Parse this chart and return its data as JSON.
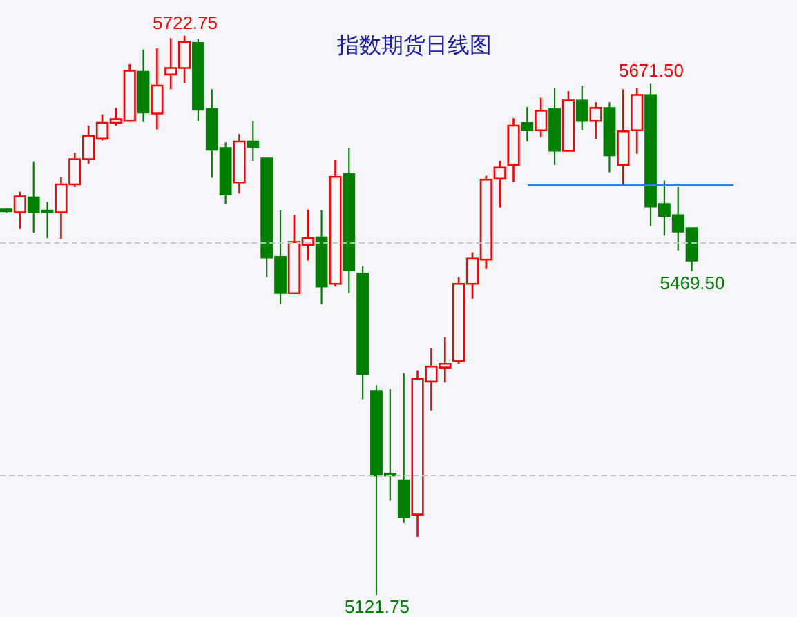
{
  "chart_data": {
    "type": "candlestick",
    "title": "指数期货日线图",
    "categories": [
      null,
      null,
      null,
      null,
      null,
      null,
      null,
      null,
      null,
      null,
      null,
      null,
      null,
      null,
      null,
      null,
      null,
      null,
      null,
      null,
      null,
      null,
      null,
      null,
      null,
      null,
      null,
      null,
      null,
      null,
      null,
      null,
      null,
      null,
      null,
      null,
      null,
      null,
      null,
      null,
      null,
      null,
      null,
      null,
      null,
      null,
      null,
      null,
      null,
      null,
      null,
      null,
      null,
      null
    ],
    "ohlc": [
      [
        5536,
        5537,
        5532,
        5534
      ],
      [
        5533,
        5555,
        5515,
        5550
      ],
      [
        5549,
        5587,
        5511,
        5533
      ],
      [
        5535,
        5544,
        5505,
        5533
      ],
      [
        5533,
        5571,
        5504,
        5563
      ],
      [
        5563,
        5597,
        5560,
        5590
      ],
      [
        5590,
        5626,
        5585,
        5615
      ],
      [
        5612,
        5638,
        5610,
        5629
      ],
      [
        5629,
        5645,
        5626,
        5633
      ],
      [
        5631,
        5692,
        5631,
        5685
      ],
      [
        5684,
        5708,
        5630,
        5640
      ],
      [
        5639,
        5709,
        5622,
        5669
      ],
      [
        5681,
        5720,
        5665,
        5688
      ],
      [
        5688,
        5722.75,
        5672,
        5716
      ],
      [
        5715,
        5719,
        5631,
        5643
      ],
      [
        5644,
        5665,
        5570,
        5600
      ],
      [
        5602,
        5608,
        5542,
        5552
      ],
      [
        5565,
        5617,
        5553,
        5609
      ],
      [
        5609,
        5631,
        5588,
        5603
      ],
      [
        5591,
        5591,
        5463,
        5484
      ],
      [
        5485,
        5535,
        5434,
        5446
      ],
      [
        5446,
        5530,
        5446,
        5501
      ],
      [
        5498,
        5536,
        5481,
        5505
      ],
      [
        5506,
        5535,
        5434,
        5453
      ],
      [
        5456,
        5589,
        5453,
        5571
      ],
      [
        5574,
        5602,
        5446,
        5471
      ],
      [
        5467,
        5475,
        5332,
        5359
      ],
      [
        5341,
        5347,
        5121.75,
        5250
      ],
      [
        5252,
        5343,
        5223,
        5250
      ],
      [
        5245,
        5360,
        5199,
        5205
      ],
      [
        5208,
        5363,
        5184,
        5354
      ],
      [
        5351,
        5387,
        5320,
        5367
      ],
      [
        5366,
        5399,
        5350,
        5370
      ],
      [
        5373,
        5463,
        5370,
        5456
      ],
      [
        5456,
        5490,
        5440,
        5483
      ],
      [
        5482,
        5572,
        5472,
        5568
      ],
      [
        5569,
        5588,
        5538,
        5581
      ],
      [
        5584,
        5634,
        5565,
        5626
      ],
      [
        5629,
        5646,
        5609,
        5621
      ],
      [
        5621,
        5656,
        5614,
        5642
      ],
      [
        5644,
        5666,
        5584,
        5599
      ],
      [
        5599,
        5663,
        5599,
        5653
      ],
      [
        5653,
        5669,
        5621,
        5631
      ],
      [
        5631,
        5651,
        5612,
        5645
      ],
      [
        5645,
        5651,
        5576,
        5594
      ],
      [
        5584,
        5665,
        5562,
        5620
      ],
      [
        5621,
        5666,
        5596,
        5659
      ],
      [
        5659,
        5671.5,
        5518,
        5539
      ],
      [
        5542,
        5567,
        5508,
        5529
      ],
      [
        5530,
        5560,
        5492,
        5512
      ],
      [
        5516,
        5516,
        5469.5,
        5481
      ],
      null,
      null,
      null
    ],
    "colors": [
      "#008000",
      "#ff0000",
      "#008000",
      "#008000",
      "#ff0000",
      "#ff0000",
      "#ff0000",
      "#ff0000",
      "#ff0000",
      "#ff0000",
      "#008000",
      "#ff0000",
      "#ff0000",
      "#ff0000",
      "#008000",
      "#008000",
      "#008000",
      "#ff0000",
      "#008000",
      "#008000",
      "#008000",
      "#ff0000",
      "#ff0000",
      "#008000",
      "#ff0000",
      "#008000",
      "#008000",
      "#008000",
      "#008000",
      "#008000",
      "#ff0000",
      "#ff0000",
      "#ff0000",
      "#ff0000",
      "#ff0000",
      "#ff0000",
      "#ff0000",
      "#ff0000",
      "#008000",
      "#ff0000",
      "#008000",
      "#ff0000",
      "#008000",
      "#ff0000",
      "#008000",
      "#ff0000",
      "#ff0000",
      "#008000",
      "#008000",
      "#008000",
      "#008000",
      null,
      null,
      null
    ],
    "series": [
      {
        "type": "line",
        "color": "#1e88f0",
        "values": [
          null,
          null,
          null,
          null,
          null,
          null,
          null,
          null,
          null,
          null,
          null,
          null,
          null,
          null,
          null,
          null,
          null,
          null,
          null,
          null,
          null,
          null,
          null,
          null,
          null,
          null,
          null,
          null,
          null,
          null,
          null,
          null,
          null,
          null,
          null,
          null,
          null,
          null,
          5562,
          5562,
          5562,
          5562,
          5562,
          5562,
          5562,
          5562,
          5562,
          5562,
          5562,
          5562,
          5562,
          5562,
          5562,
          5562
        ]
      }
    ],
    "annotations": [
      {
        "text": "5722.75",
        "y": 5722.75
      },
      {
        "text": "5671.50",
        "y": 5671.5
      },
      {
        "text": "5469.50",
        "y": 5469.5
      },
      {
        "text": "5121.75",
        "y": 5121.75
      }
    ],
    "ylim": [
      5098,
      5761
    ],
    "yticks": [
      {
        "value": 5250,
        "label": null
      },
      {
        "value": 5500,
        "label": null
      }
    ],
    "grid": "y",
    "tick_labels": false
  }
}
